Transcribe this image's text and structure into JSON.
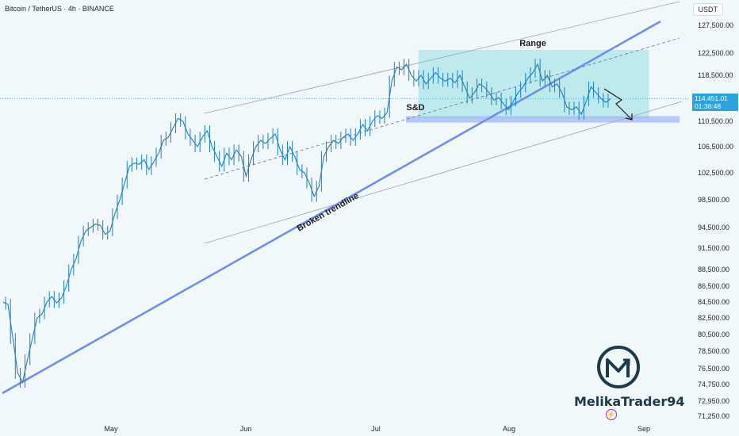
{
  "header": {
    "title": "Bitcoin / TetherUS · 4h · BINANCE",
    "currency": "USDT"
  },
  "price_tag": {
    "price": "114,451.01",
    "countdown": "01:38:48"
  },
  "watermark": {
    "name": "MelikaTrader94",
    "logo_icon": "m-arrow-logo",
    "badge_icon": "lightning-icon"
  },
  "colors": {
    "candle": "#1e7fc1",
    "trendline": "#6b8cf0",
    "channel": "#9aa3ab",
    "range_box": "#62d3d6",
    "support_zone": "#9fb4f4",
    "price_tag": "#2aa4e0",
    "logo": "#1d3a4a",
    "badge": "#c21fa8"
  },
  "chart_data": {
    "type": "line",
    "title": "Bitcoin / TetherUS · 4h · BINANCE",
    "ylabel": "USDT",
    "y_axis_ticks": [
      "127,500.00",
      "122,500.00",
      "118,500.00",
      "110,500.00",
      "106,500.00",
      "102,500.00",
      "98,500.00",
      "94,500.00",
      "91,500.00",
      "88,500.00",
      "86,500.00",
      "84,500.00",
      "82,500.00",
      "80,500.00",
      "78,500.00",
      "76,500.00",
      "74,750.00",
      "72,950.00",
      "71,250.00"
    ],
    "x_axis_ticks": [
      "May",
      "Jun",
      "Jul",
      "Aug",
      "Sep"
    ],
    "ylim": [
      70500,
      130000
    ],
    "series": [
      {
        "values": [
          84500,
          84200,
          80000,
          76000,
          75000,
          77500,
          80000,
          82500,
          83000,
          84500,
          85200,
          84400,
          85000,
          86500,
          88500,
          90000,
          92500,
          94000,
          94500,
          95000,
          94800,
          93500,
          94000,
          96500,
          98500,
          101000,
          103500,
          104000,
          103800,
          104500,
          103000,
          104200,
          105500,
          107500,
          108000,
          109500,
          111000,
          110500,
          108500,
          107500,
          106500,
          108000,
          109000,
          106500,
          105000,
          103500,
          105500,
          104500,
          106000,
          105000,
          102000,
          104500,
          106500,
          107500,
          107000,
          107800,
          108500,
          106000,
          104500,
          106500,
          105000,
          103000,
          102500,
          101000,
          99000,
          100500,
          105000,
          106500,
          107500,
          107000,
          108000,
          108500,
          107500,
          108500,
          110000,
          109000,
          110500,
          111500,
          111000,
          112000,
          117500,
          120000,
          119500,
          120500,
          118500,
          117500,
          118500,
          117000,
          118000,
          119000,
          118000,
          117500,
          118000,
          117200,
          118500,
          116500,
          114500,
          115500,
          117000,
          116500,
          115500,
          114200,
          114600,
          113500,
          112500,
          114000,
          115500,
          116500,
          118000,
          119000,
          120500,
          117500,
          118500,
          116500,
          117000,
          115500,
          113000,
          112500,
          113000,
          111700,
          114000,
          116500,
          115500,
          114500,
          113800,
          114400
        ]
      }
    ],
    "annotations": {
      "range": "Range",
      "s_and_d": "S&D",
      "broken_trendline": "Broken trendline"
    },
    "grid": false
  }
}
